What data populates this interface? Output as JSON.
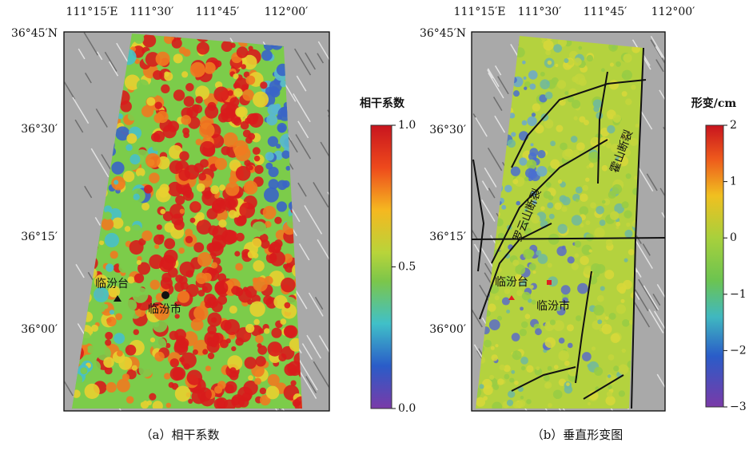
{
  "panels": [
    {
      "top_labels": [
        "111°15′E",
        "111°30′",
        "111°45′",
        "112°00′"
      ],
      "left_labels": [
        "36°45′N",
        "36°30′",
        "36°15′",
        "36°00′"
      ],
      "colorbar": {
        "title": "相干系数",
        "ticks": [
          "1.0",
          "0.5",
          "0.0"
        ]
      },
      "places": [
        "临汾台",
        "临汾市"
      ],
      "caption": "（a）相干系数"
    },
    {
      "top_labels": [
        "111°15′E",
        "111°30′",
        "111°45′",
        "112°00′"
      ],
      "left_labels": [
        "36°45′N",
        "36°30′",
        "36°15′",
        "36°00′"
      ],
      "colorbar": {
        "title": "形变/cm",
        "ticks": [
          "2",
          "1",
          "0",
          "−1",
          "−2",
          "−3"
        ]
      },
      "places": [
        "临汾台",
        "临汾市"
      ],
      "faults": [
        "罗云山断裂",
        "霍山断裂"
      ],
      "caption": "（b）垂直形变图"
    }
  ]
}
